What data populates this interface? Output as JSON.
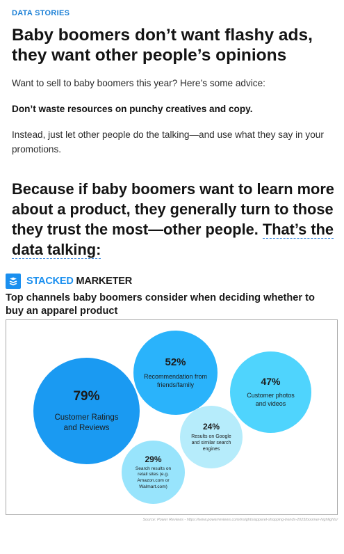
{
  "kicker": "DATA STORIES",
  "headline": "Baby boomers don’t want flashy ads, they want other people’s opinions",
  "paragraphs": {
    "intro": "Want to sell to baby boomers this year? Here’s some advice:",
    "advice": "Don’t waste resources on punchy creatives and copy.",
    "instead": "Instead, just let other people do the talking—and use what they say in your promotions."
  },
  "callout": {
    "text": "Because if baby boomers want to learn more about a product, they generally turn to those they trust the most—other people. ",
    "link": "That’s the data talking:"
  },
  "brand": {
    "part1": "STACKED",
    "part2": " MARKETER",
    "logo_icon": "layers-icon",
    "color": "#1a8fef"
  },
  "chart_title": "Top channels baby boomers consider when deciding whether to buy an apparel product",
  "chart_data": {
    "type": "bubble",
    "title": "Top channels baby boomers consider when deciding whether to buy an apparel product",
    "items": [
      {
        "value": 79,
        "pct": "79%",
        "label": "Customer Ratings and Reviews",
        "color": "#1a9af2"
      },
      {
        "value": 52,
        "pct": "52%",
        "label": "Recommendation from friends/family",
        "color": "#2ab3fb"
      },
      {
        "value": 47,
        "pct": "47%",
        "label": "Customer photos and videos",
        "color": "#4fd4fd"
      },
      {
        "value": 24,
        "pct": "24%",
        "label": "Results on Google and similar search engines",
        "color": "#b6ecfb"
      },
      {
        "value": 29,
        "pct": "29%",
        "label": "Search results on retail sites (e.g. Amazon.com or Walmart.com)",
        "color": "#98e4fc"
      }
    ]
  },
  "source": "Source: Power Reviews - https://www.powerreviews.com/insights/apparel-shopping-trends-2023/boomer-highlights/"
}
